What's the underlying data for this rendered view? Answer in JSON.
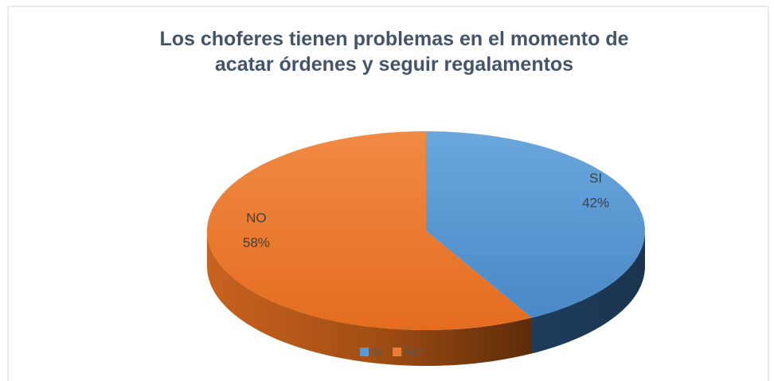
{
  "chart_data": {
    "type": "pie3d",
    "title": "Los choferes tienen problemas en el momento de acatar órdenes y seguir regalamentos",
    "categories": [
      "SI",
      "NO"
    ],
    "values": [
      42,
      58
    ],
    "value_labels": [
      "42%",
      "58%"
    ],
    "colors": [
      "#5b9bd5",
      "#ed7d31"
    ],
    "legend": "bottom"
  }
}
